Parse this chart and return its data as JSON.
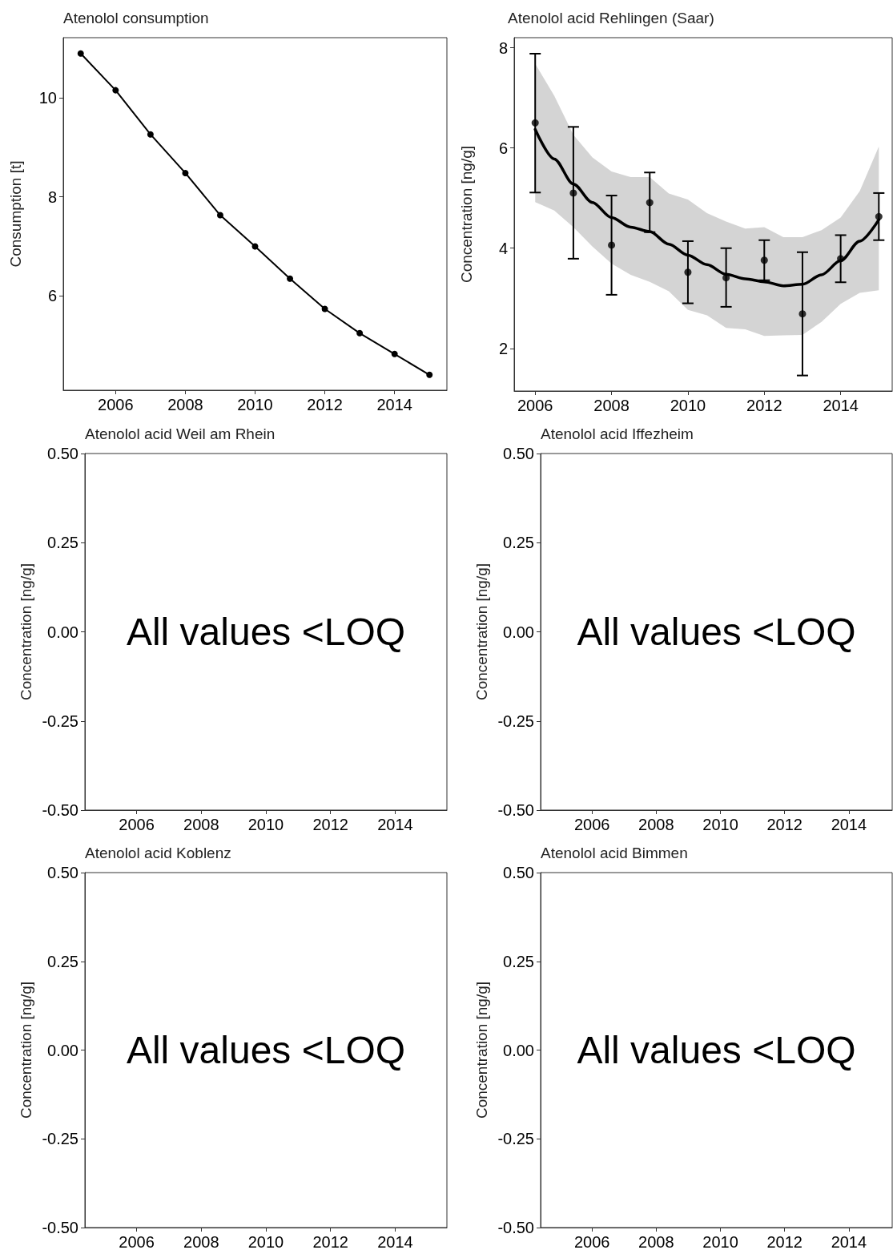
{
  "chart_data": [
    {
      "type": "line",
      "title": "Atenolol consumption",
      "ylabel": "Consumption [t]",
      "marker": "circle",
      "line_style": "solid",
      "color": "#000000",
      "x": [
        2005,
        2006,
        2007,
        2008,
        2009,
        2010,
        2011,
        2012,
        2013,
        2014,
        2015
      ],
      "values": [
        10.89,
        10.15,
        9.26,
        8.48,
        7.63,
        7.0,
        6.35,
        5.74,
        5.25,
        4.83,
        4.41
      ],
      "xlim": [
        2004.5,
        2015.5
      ],
      "xticks": [
        2006,
        2008,
        2010,
        2012,
        2014
      ],
      "ylim": [
        4.1,
        11.21
      ],
      "yticks": [
        6,
        8,
        10
      ]
    },
    {
      "type": "scatter",
      "title": "Atenolol acid Rehlingen (Saar)",
      "ylabel": "Concentration [ng/g]",
      "series": [
        {
          "type": "line",
          "color": "#000000",
          "marker": "none",
          "line_style": "solid",
          "x": [
            2006,
            2006.5,
            2007,
            2007.5,
            2008,
            2008.5,
            2009,
            2009.5,
            2010,
            2010.5,
            2011,
            2011.5,
            2012,
            2012.5,
            2013,
            2013.5,
            2014,
            2014.5,
            2015
          ],
          "values": [
            6.37,
            5.78,
            5.28,
            4.91,
            4.61,
            4.42,
            4.33,
            4.08,
            3.86,
            3.67,
            3.48,
            3.39,
            3.33,
            3.25,
            3.28,
            3.47,
            3.75,
            4.14,
            4.57
          ],
          "upper": [
            7.68,
            7.04,
            6.26,
            5.81,
            5.53,
            5.42,
            5.42,
            5.09,
            4.97,
            4.7,
            4.53,
            4.39,
            4.42,
            4.22,
            4.22,
            4.36,
            4.61,
            5.14,
            6.03
          ],
          "lower": [
            4.92,
            4.75,
            4.42,
            4.03,
            3.69,
            3.47,
            3.33,
            3.14,
            2.77,
            2.66,
            2.41,
            2.38,
            2.25,
            2.26,
            2.27,
            2.53,
            2.89,
            3.11,
            3.16
          ]
        },
        {
          "type": "scatter",
          "color": "#000000",
          "marker": "circle",
          "x": [
            2006,
            2007,
            2008,
            2009,
            2010,
            2011,
            2012,
            2013,
            2014,
            2015
          ],
          "values": [
            6.5,
            5.1,
            4.06,
            4.91,
            3.52,
            3.41,
            3.76,
            2.69,
            3.79,
            4.63
          ],
          "errors": [
            [
              5.11,
              7.88
            ],
            [
              3.79,
              6.42
            ],
            [
              3.07,
              5.05
            ],
            [
              4.32,
              5.51
            ],
            [
              2.9,
              4.14
            ],
            [
              2.83,
              4.0
            ],
            [
              3.36,
              4.16
            ],
            [
              1.46,
              3.92
            ],
            [
              3.32,
              4.26
            ],
            [
              4.16,
              5.1
            ]
          ]
        }
      ],
      "xlim": [
        2005.45,
        2015.35
      ],
      "xticks": [
        2006,
        2008,
        2010,
        2012,
        2014
      ],
      "ylim": [
        1.15,
        8.2
      ],
      "yticks": [
        2,
        4,
        6,
        8
      ]
    },
    {
      "type": "scatter",
      "title": "Atenolol acid Weil am Rhein",
      "ylabel": "Concentration [ng/g]",
      "annotations": [
        "All values <LOQ"
      ],
      "xlim": [
        2004.4,
        2015.6
      ],
      "xticks": [
        2006,
        2008,
        2010,
        2012,
        2014
      ],
      "ylim": [
        -0.5,
        0.5
      ],
      "yticks": [
        {
          "value": -0.5,
          "label": "-0.50"
        },
        {
          "value": -0.25,
          "label": "-0.25"
        },
        {
          "value": 0,
          "label": "0.00"
        },
        {
          "value": 0.25,
          "label": "0.25"
        },
        {
          "value": 0.5,
          "label": "0.50"
        }
      ]
    },
    {
      "type": "scatter",
      "title": "Atenolol acid Iffezheim",
      "ylabel": "Concentration [ng/g]",
      "annotations": [
        "All values <LOQ"
      ],
      "xlim": [
        2004.4,
        2015.35
      ],
      "xticks": [
        2006,
        2008,
        2010,
        2012,
        2014
      ],
      "ylim": [
        -0.5,
        0.5
      ],
      "yticks": [
        {
          "value": -0.5,
          "label": "-0.50"
        },
        {
          "value": -0.25,
          "label": "-0.25"
        },
        {
          "value": 0,
          "label": "0.00"
        },
        {
          "value": 0.25,
          "label": "0.25"
        },
        {
          "value": 0.5,
          "label": "0.50"
        }
      ]
    },
    {
      "type": "scatter",
      "title": "Atenolol acid Koblenz",
      "ylabel": "Concentration [ng/g]",
      "annotations": [
        "All values <LOQ"
      ],
      "xlim": [
        2004.4,
        2015.6
      ],
      "xticks": [
        2006,
        2008,
        2010,
        2012,
        2014
      ],
      "ylim": [
        -0.5,
        0.5
      ],
      "yticks": [
        {
          "value": -0.5,
          "label": "-0.50"
        },
        {
          "value": -0.25,
          "label": "-0.25"
        },
        {
          "value": 0,
          "label": "0.00"
        },
        {
          "value": 0.25,
          "label": "0.25"
        },
        {
          "value": 0.5,
          "label": "0.50"
        }
      ]
    },
    {
      "type": "scatter",
      "title": "Atenolol acid Bimmen",
      "ylabel": "Concentration [ng/g]",
      "annotations": [
        "All values <LOQ"
      ],
      "xlim": [
        2004.4,
        2015.35
      ],
      "xticks": [
        2006,
        2008,
        2010,
        2012,
        2014
      ],
      "ylim": [
        -0.5,
        0.5
      ],
      "yticks": [
        {
          "value": -0.5,
          "label": "-0.50"
        },
        {
          "value": -0.25,
          "label": "-0.25"
        },
        {
          "value": 0,
          "label": "0.00"
        },
        {
          "value": 0.25,
          "label": "0.25"
        },
        {
          "value": 0.5,
          "label": "0.50"
        }
      ]
    }
  ]
}
